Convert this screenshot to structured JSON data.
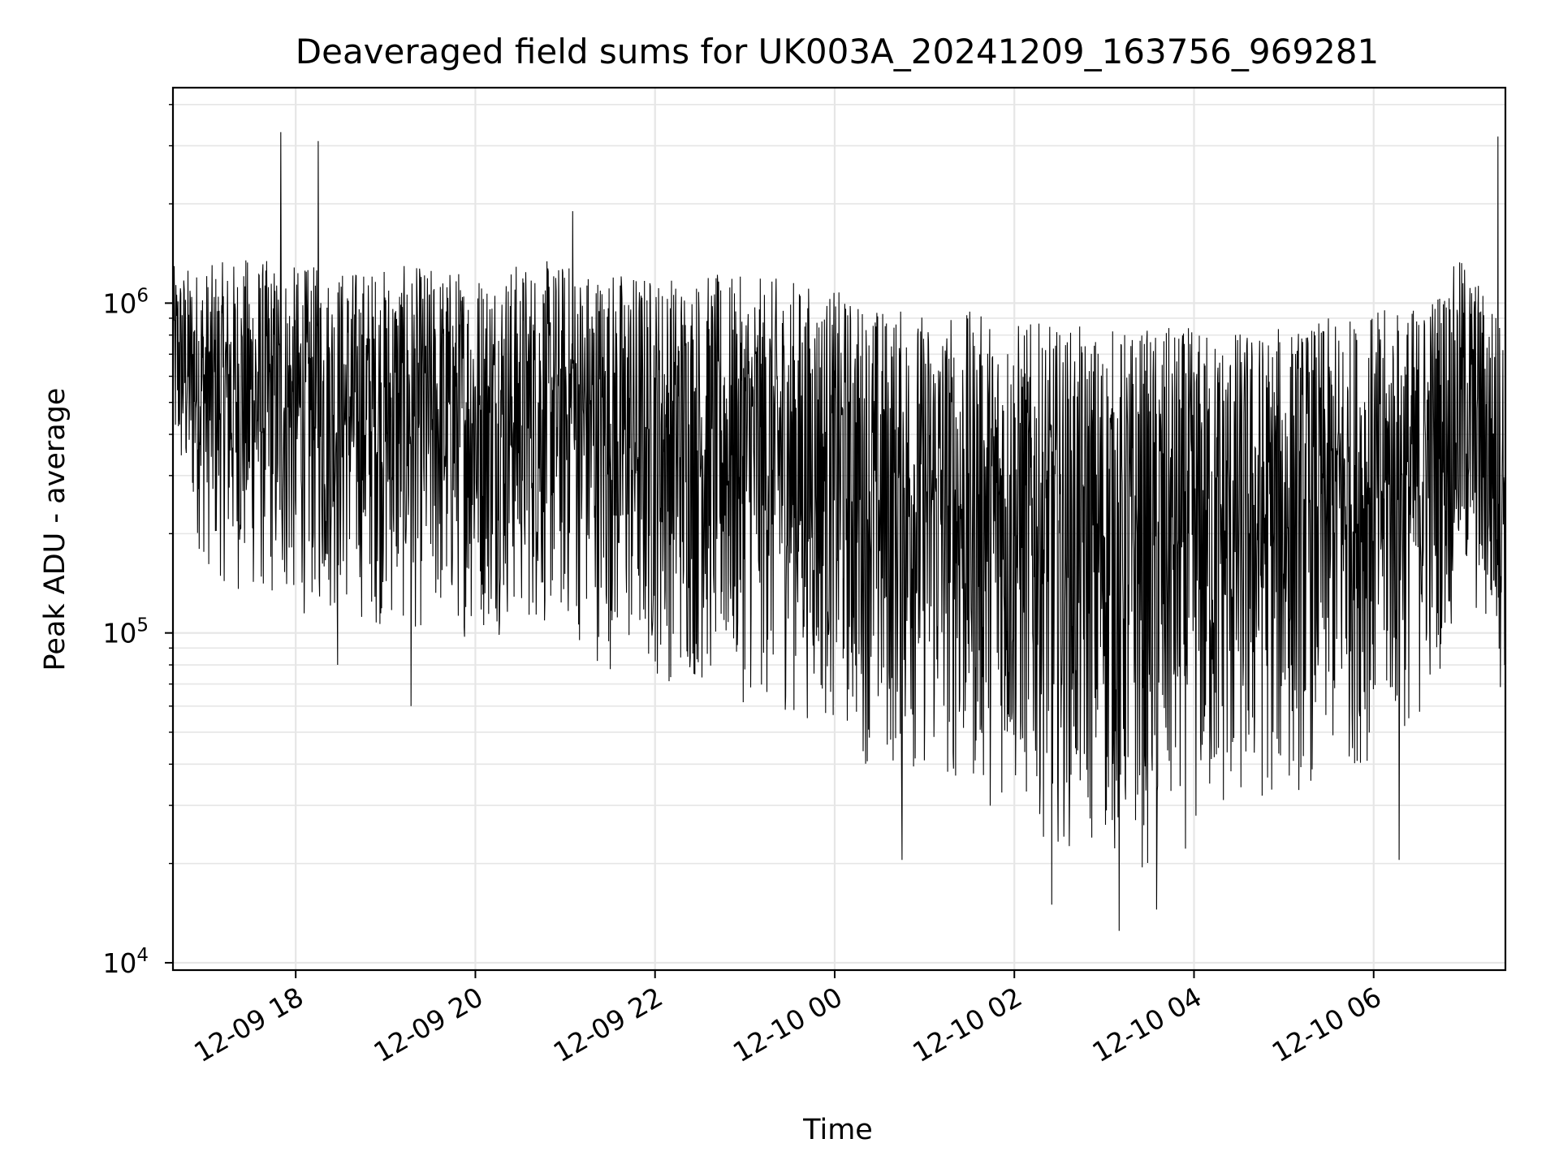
{
  "chart_data": {
    "type": "line",
    "title": "Deaveraged field sums for UK003A_20241209_163756_969281",
    "xlabel": "Time",
    "ylabel": "Peak ADU - average",
    "yscale": "log",
    "ylim": [
      9500,
      4500000
    ],
    "xlim": [
      "2024-12-09 16:38",
      "2024-12-10 07:28"
    ],
    "grid": true,
    "legend": "none",
    "line_color": "#000000",
    "x_ticks": [
      {
        "value": "2024-12-09 18:00",
        "label": "12-09 18"
      },
      {
        "value": "2024-12-09 20:00",
        "label": "12-09 20"
      },
      {
        "value": "2024-12-09 22:00",
        "label": "12-09 22"
      },
      {
        "value": "2024-12-10 00:00",
        "label": "12-10 00"
      },
      {
        "value": "2024-12-10 02:00",
        "label": "12-10 02"
      },
      {
        "value": "2024-12-10 04:00",
        "label": "12-10 04"
      },
      {
        "value": "2024-12-10 06:00",
        "label": "12-10 06"
      }
    ],
    "y_ticks": [
      {
        "value": 10000,
        "base": "10",
        "exp": "4"
      },
      {
        "value": 100000,
        "base": "10",
        "exp": "5"
      },
      {
        "value": 1000000,
        "base": "10",
        "exp": "6"
      }
    ],
    "envelope": {
      "x": [
        "2024-12-09 16:38",
        "2024-12-09 17:00",
        "2024-12-09 17:30",
        "2024-12-09 18:00",
        "2024-12-09 18:30",
        "2024-12-09 19:00",
        "2024-12-09 19:30",
        "2024-12-09 20:00",
        "2024-12-09 20:30",
        "2024-12-09 21:00",
        "2024-12-09 21:30",
        "2024-12-09 22:00",
        "2024-12-09 22:30",
        "2024-12-09 23:00",
        "2024-12-09 23:30",
        "2024-12-10 00:00",
        "2024-12-10 00:30",
        "2024-12-10 01:00",
        "2024-12-10 01:30",
        "2024-12-10 02:00",
        "2024-12-10 02:30",
        "2024-12-10 03:00",
        "2024-12-10 03:30",
        "2024-12-10 04:00",
        "2024-12-10 04:30",
        "2024-12-10 05:00",
        "2024-12-10 05:30",
        "2024-12-10 06:00",
        "2024-12-10 06:30",
        "2024-12-10 07:00",
        "2024-12-10 07:28"
      ],
      "typical_max": [
        1300000,
        1300000,
        1400000,
        1300000,
        1300000,
        1300000,
        1300000,
        1300000,
        1350000,
        1350000,
        1300000,
        1250000,
        1250000,
        1200000,
        1200000,
        1100000,
        1000000,
        950000,
        950000,
        900000,
        850000,
        850000,
        850000,
        850000,
        850000,
        850000,
        900000,
        950000,
        1000000,
        1400000,
        900000
      ],
      "typical_min": [
        300000,
        150000,
        120000,
        110000,
        110000,
        100000,
        95000,
        95000,
        100000,
        95000,
        75000,
        70000,
        65000,
        60000,
        55000,
        50000,
        35000,
        35000,
        30000,
        28000,
        22000,
        20000,
        18000,
        22000,
        25000,
        30000,
        35000,
        40000,
        50000,
        120000,
        60000
      ]
    },
    "notable_points": [
      {
        "x": "2024-12-09 17:50",
        "y": 3300000
      },
      {
        "x": "2024-12-09 18:15",
        "y": 3100000
      },
      {
        "x": "2024-12-09 18:28",
        "y": 80000
      },
      {
        "x": "2024-12-09 19:17",
        "y": 60000
      },
      {
        "x": "2024-12-09 21:05",
        "y": 1900000
      },
      {
        "x": "2024-12-10 00:45",
        "y": 20500.0
      },
      {
        "x": "2024-12-10 02:25",
        "y": 15000
      },
      {
        "x": "2024-12-10 03:10",
        "y": 12500
      },
      {
        "x": "2024-12-10 03:35",
        "y": 14500
      },
      {
        "x": "2024-12-10 06:17",
        "y": 20500
      },
      {
        "x": "2024-12-10 07:23",
        "y": 3200000
      },
      {
        "x": "2024-12-10 07:28",
        "y": 52000
      }
    ]
  }
}
